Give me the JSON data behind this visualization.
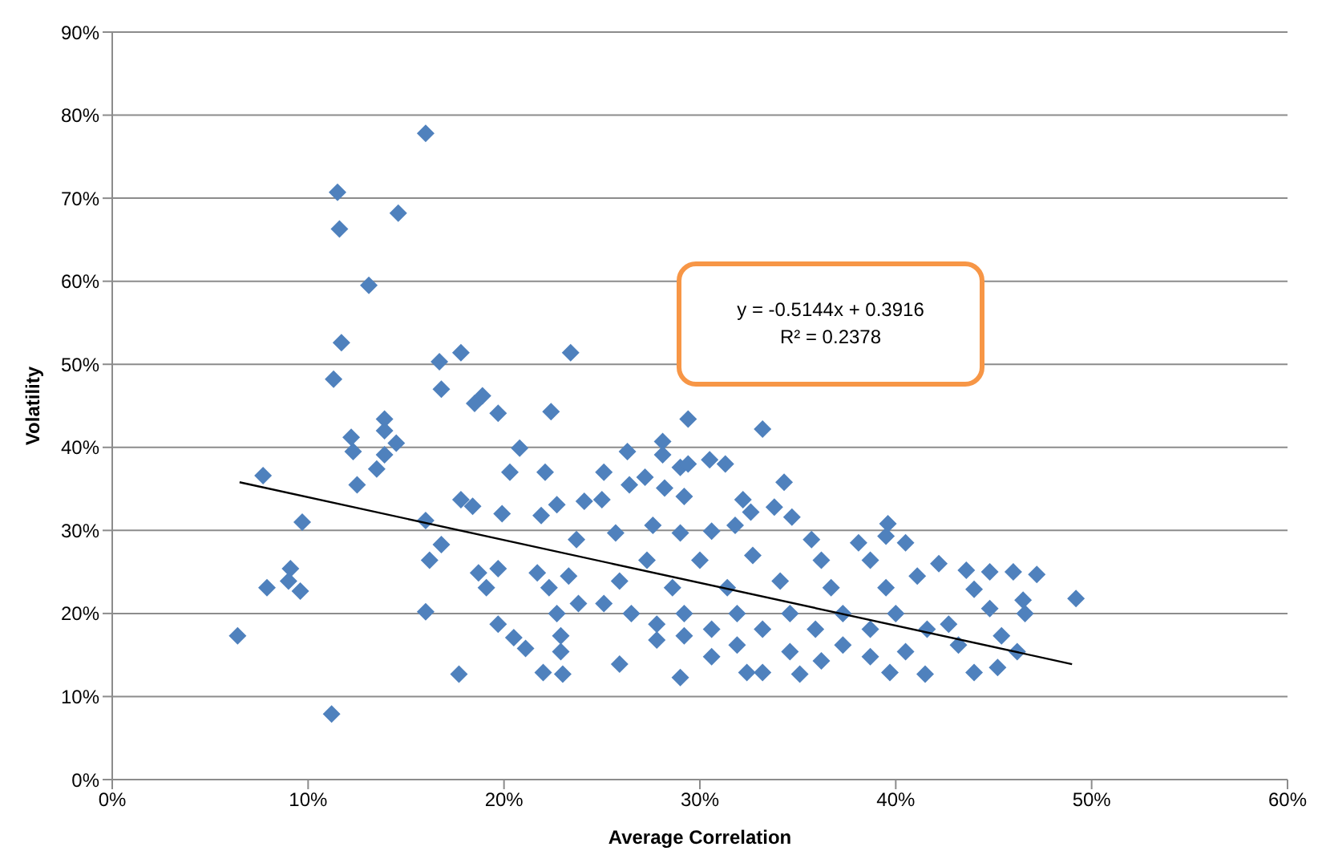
{
  "chart_data": {
    "type": "scatter",
    "xlabel": "Average Correlation",
    "ylabel": "Volatility",
    "xlim": [
      0,
      0.6
    ],
    "ylim": [
      0,
      0.9
    ],
    "xticks": [
      {
        "value": 0,
        "label": "0%"
      },
      {
        "value": 0.1,
        "label": "10%"
      },
      {
        "value": 0.2,
        "label": "20%"
      },
      {
        "value": 0.3,
        "label": "30%"
      },
      {
        "value": 0.4,
        "label": "40%"
      },
      {
        "value": 0.5,
        "label": "50%"
      },
      {
        "value": 0.6,
        "label": "60%"
      }
    ],
    "yticks": [
      {
        "value": 0,
        "label": "0%"
      },
      {
        "value": 0.1,
        "label": "10%"
      },
      {
        "value": 0.2,
        "label": "20%"
      },
      {
        "value": 0.3,
        "label": "30%"
      },
      {
        "value": 0.4,
        "label": "40%"
      },
      {
        "value": 0.5,
        "label": "50%"
      },
      {
        "value": 0.6,
        "label": "60%"
      },
      {
        "value": 0.7,
        "label": "70%"
      },
      {
        "value": 0.8,
        "label": "80%"
      },
      {
        "value": 0.9,
        "label": "90%"
      }
    ],
    "grid": "y",
    "legend": false,
    "marker": "diamond",
    "annotations": [
      "y = -0.5144x + 0.3916",
      "R² = 0.2378"
    ],
    "series": [
      {
        "color": "#4f81bd",
        "x": [
          0.077,
          0.097,
          0.091,
          0.079,
          0.096,
          0.09,
          0.064,
          0.112,
          0.16,
          0.177,
          0.16,
          0.197,
          0.205,
          0.211,
          0.22,
          0.23,
          0.178,
          0.184,
          0.199,
          0.203,
          0.208,
          0.123,
          0.125,
          0.135,
          0.139,
          0.168,
          0.162,
          0.191,
          0.187,
          0.197,
          0.217,
          0.223,
          0.229,
          0.229,
          0.219,
          0.227,
          0.221,
          0.16,
          0.115,
          0.116,
          0.146,
          0.131,
          0.117,
          0.113,
          0.167,
          0.178,
          0.168,
          0.185,
          0.189,
          0.197,
          0.224,
          0.122,
          0.139,
          0.139,
          0.145,
          0.234,
          0.294,
          0.332,
          0.281,
          0.263,
          0.281,
          0.29,
          0.294,
          0.305,
          0.313,
          0.251,
          0.272,
          0.343,
          0.264,
          0.282,
          0.241,
          0.25,
          0.292,
          0.322,
          0.338,
          0.347,
          0.326,
          0.396,
          0.395,
          0.405,
          0.237,
          0.257,
          0.276,
          0.29,
          0.306,
          0.318,
          0.357,
          0.381,
          0.422,
          0.436,
          0.448,
          0.46,
          0.472,
          0.492,
          0.465,
          0.466,
          0.448,
          0.44,
          0.454,
          0.462,
          0.452,
          0.44,
          0.415,
          0.397,
          0.351,
          0.332,
          0.324,
          0.29,
          0.259,
          0.292,
          0.319,
          0.346,
          0.373,
          0.387,
          0.362,
          0.306,
          0.278,
          0.265,
          0.292,
          0.319,
          0.346,
          0.373,
          0.4,
          0.416,
          0.427,
          0.432,
          0.405,
          0.251,
          0.238,
          0.227,
          0.273,
          0.3,
          0.327,
          0.362,
          0.387,
          0.411,
          0.341,
          0.367,
          0.395,
          0.314,
          0.286,
          0.259,
          0.233,
          0.306,
          0.332,
          0.359,
          0.387,
          0.278
        ],
        "values": [
          0.366,
          0.31,
          0.254,
          0.231,
          0.227,
          0.239,
          0.173,
          0.079,
          0.202,
          0.127,
          0.312,
          0.187,
          0.171,
          0.158,
          0.129,
          0.127,
          0.337,
          0.329,
          0.32,
          0.37,
          0.399,
          0.395,
          0.355,
          0.374,
          0.391,
          0.283,
          0.264,
          0.231,
          0.249,
          0.254,
          0.249,
          0.231,
          0.173,
          0.154,
          0.318,
          0.331,
          0.37,
          0.778,
          0.707,
          0.663,
          0.682,
          0.595,
          0.526,
          0.482,
          0.503,
          0.514,
          0.47,
          0.453,
          0.462,
          0.441,
          0.443,
          0.412,
          0.434,
          0.42,
          0.405,
          0.514,
          0.434,
          0.422,
          0.407,
          0.395,
          0.391,
          0.376,
          0.38,
          0.385,
          0.38,
          0.37,
          0.364,
          0.358,
          0.355,
          0.351,
          0.335,
          0.337,
          0.341,
          0.337,
          0.328,
          0.316,
          0.322,
          0.308,
          0.293,
          0.285,
          0.289,
          0.297,
          0.306,
          0.297,
          0.299,
          0.306,
          0.289,
          0.285,
          0.26,
          0.252,
          0.25,
          0.25,
          0.247,
          0.218,
          0.216,
          0.2,
          0.206,
          0.229,
          0.173,
          0.154,
          0.135,
          0.129,
          0.127,
          0.129,
          0.127,
          0.129,
          0.129,
          0.123,
          0.139,
          0.173,
          0.162,
          0.154,
          0.162,
          0.148,
          0.143,
          0.148,
          0.168,
          0.2,
          0.2,
          0.2,
          0.2,
          0.2,
          0.2,
          0.181,
          0.187,
          0.162,
          0.154,
          0.212,
          0.212,
          0.2,
          0.264,
          0.264,
          0.27,
          0.264,
          0.264,
          0.245,
          0.239,
          0.231,
          0.231,
          0.231,
          0.231,
          0.239,
          0.245,
          0.181,
          0.181,
          0.181,
          0.181,
          0.187
        ]
      },
      {
        "type": "line",
        "marker": "none",
        "color": "#000000",
        "x": [
          0.065,
          0.49
        ],
        "values": [
          0.358,
          0.139
        ]
      }
    ]
  }
}
